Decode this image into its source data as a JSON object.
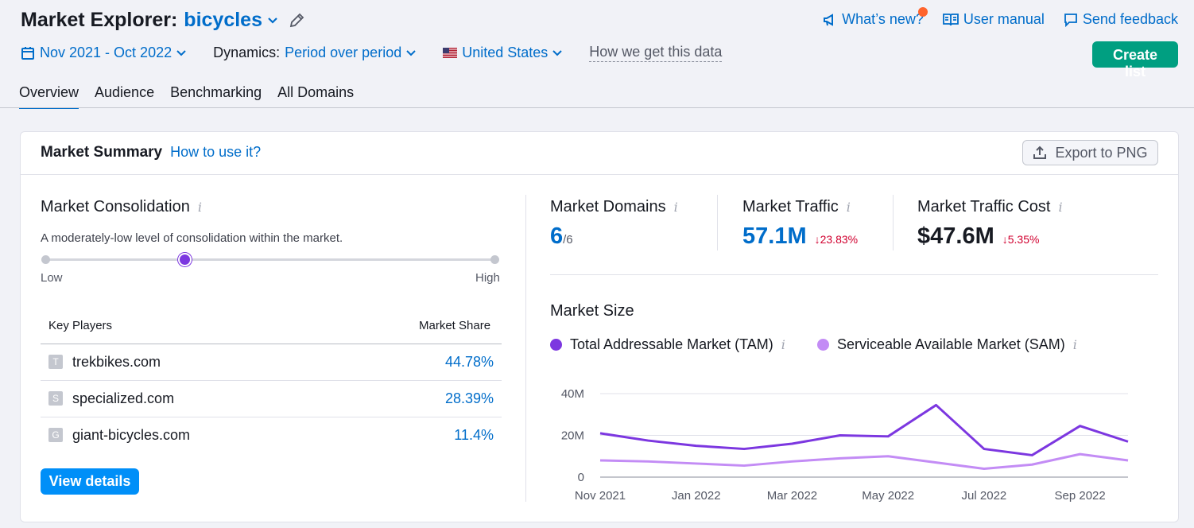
{
  "header": {
    "title_prefix": "Market Explorer:",
    "keyword": "bicycles",
    "links": {
      "whats_new": "What’s new?",
      "user_manual": "User manual",
      "send_feedback": "Send feedback"
    }
  },
  "filters": {
    "date_range": "Nov 2021 - Oct 2022",
    "dynamics_label": "Dynamics:",
    "dynamics_value": "Period over period",
    "country": "United States",
    "how_we_get": "How we get this data"
  },
  "create_list": "Create list",
  "tabs": [
    "Overview",
    "Audience",
    "Benchmarking",
    "All Domains"
  ],
  "card": {
    "title": "Market Summary",
    "help": "How to use it?",
    "export": "Export to PNG"
  },
  "consolidation": {
    "title": "Market Consolidation",
    "info": "i",
    "description": "A moderately-low level of consolidation within the market.",
    "low": "Low",
    "high": "High",
    "level": 0.31
  },
  "key_players": {
    "col_player": "Key Players",
    "col_share": "Market Share",
    "rows": [
      {
        "letter": "T",
        "domain": "trekbikes.com",
        "share": "44.78%"
      },
      {
        "letter": "S",
        "domain": "specialized.com",
        "share": "28.39%"
      },
      {
        "letter": "G",
        "domain": "giant-bicycles.com",
        "share": "11.4%"
      }
    ]
  },
  "view_details": "View details",
  "metrics": {
    "domains": {
      "label": "Market Domains",
      "value": "6",
      "total": "/6"
    },
    "traffic": {
      "label": "Market Traffic",
      "value": "57.1M",
      "change": "↓23.83%"
    },
    "cost": {
      "label": "Market Traffic Cost",
      "value": "$47.6M",
      "change": "↓5.35%"
    }
  },
  "market_size": {
    "title": "Market Size",
    "legend_tam": "Total Addressable Market (TAM)",
    "legend_sam": "Serviceable Available Market (SAM)"
  },
  "colors": {
    "tam": "#7c37e0",
    "sam": "#c38cf5",
    "accent": "#006dca",
    "create": "#009f81"
  },
  "chart_data": {
    "type": "line",
    "x": [
      "Nov 2021",
      "Dec 2021",
      "Jan 2022",
      "Feb 2022",
      "Mar 2022",
      "Apr 2022",
      "May 2022",
      "Jun 2022",
      "Jul 2022",
      "Aug 2022",
      "Sep 2022",
      "Oct 2022"
    ],
    "x_tick_labels": [
      "Nov 2021",
      "Jan 2022",
      "Mar 2022",
      "May 2022",
      "Jul 2022",
      "Sep 2022"
    ],
    "y_tick_labels": [
      "0",
      "20M",
      "40M"
    ],
    "ylim": [
      0,
      40
    ],
    "y_unit": "M",
    "grid": true,
    "series": [
      {
        "name": "Total Addressable Market (TAM)",
        "values": [
          21,
          17.5,
          15,
          13.5,
          16,
          20,
          19.5,
          34.5,
          13.5,
          10.5,
          24.5,
          17
        ]
      },
      {
        "name": "Serviceable Available Market (SAM)",
        "values": [
          8,
          7.5,
          6.5,
          5.5,
          7.5,
          9,
          10,
          7,
          4,
          6,
          11,
          8
        ]
      }
    ]
  }
}
